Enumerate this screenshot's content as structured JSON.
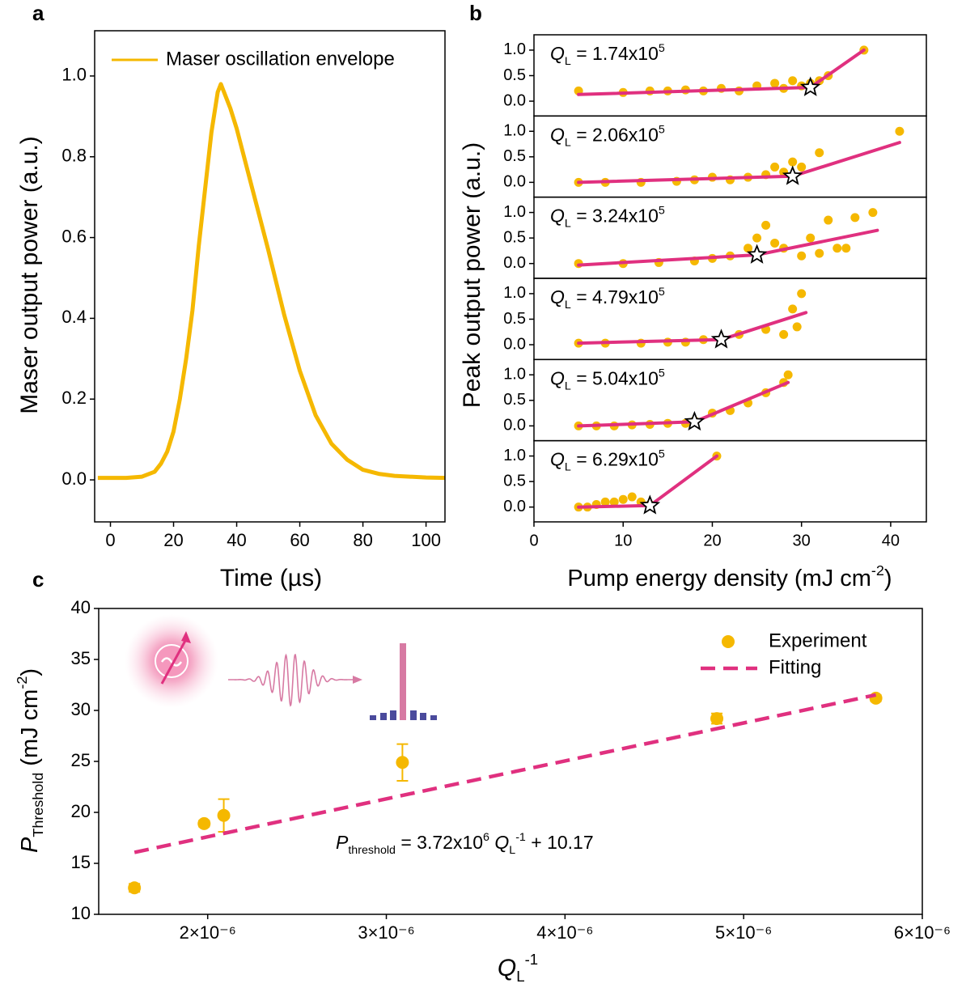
{
  "chart_data": [
    {
      "type": "line",
      "panel_label": "a",
      "xlabel": "Time (µs)",
      "ylabel": "Maser output power (a.u.)",
      "xlim": [
        -5,
        106
      ],
      "ylim": [
        -0.1,
        1.1
      ],
      "xticks": [
        0,
        20,
        40,
        60,
        80,
        100
      ],
      "yticks": [
        {
          "value": 0,
          "label": "0.0"
        },
        0.2,
        0.4,
        0.6,
        0.8,
        {
          "value": 1,
          "label": "1.0"
        }
      ],
      "x": [
        -4,
        0,
        5,
        10,
        14,
        16,
        18,
        20,
        22,
        24,
        26,
        28,
        30,
        32,
        34,
        35,
        36,
        38,
        40,
        42,
        45,
        48,
        50,
        55,
        60,
        65,
        70,
        75,
        80,
        85,
        90,
        100,
        106
      ],
      "series": [
        {
          "name": "Maser oscillation envelope",
          "color": "#f5b800",
          "values": [
            0.005,
            0.005,
            0.005,
            0.008,
            0.02,
            0.04,
            0.07,
            0.12,
            0.2,
            0.3,
            0.42,
            0.58,
            0.72,
            0.86,
            0.96,
            0.98,
            0.96,
            0.92,
            0.87,
            0.81,
            0.72,
            0.63,
            0.57,
            0.41,
            0.27,
            0.16,
            0.09,
            0.05,
            0.025,
            0.015,
            0.01,
            0.006,
            0.005
          ]
        }
      ],
      "legend": "upper left"
    },
    {
      "type": "scatter",
      "panel_label": "b",
      "xlabel": [
        "Pump energy density (mJ cm",
        "-2",
        ")"
      ],
      "ylabel": "Peak output power (a.u.)",
      "xlim": [
        0,
        44
      ],
      "xticks": [
        0,
        10,
        20,
        30,
        40
      ],
      "ylim": [
        -0.29,
        1.3
      ],
      "yticks": [
        {
          "value": 0,
          "label": "0.0"
        },
        0.5,
        {
          "value": 1,
          "label": "1.0"
        }
      ],
      "color": "#f5b800",
      "fit_color": "#e0307f",
      "subplots": [
        {
          "label": [
            "Q",
            "L",
            " = 1.74x10",
            "5"
          ],
          "x": [
            5,
            10,
            13,
            15,
            17,
            19,
            21,
            23,
            25,
            27,
            28,
            29,
            30,
            31,
            32,
            33,
            37
          ],
          "y": [
            0.2,
            0.17,
            0.2,
            0.2,
            0.22,
            0.2,
            0.25,
            0.2,
            0.3,
            0.35,
            0.25,
            0.4,
            0.3,
            0.35,
            0.4,
            0.5,
            1.0
          ],
          "fit": {
            "x": [
              5,
              31,
              37
            ],
            "y": [
              0.13,
              0.27,
              1.0
            ]
          },
          "threshold": {
            "x": 31,
            "y": 0.27
          }
        },
        {
          "label": [
            "Q",
            "L",
            " = 2.06x10",
            "5"
          ],
          "x": [
            5,
            8,
            12,
            16,
            18,
            20,
            22,
            24,
            26,
            27,
            28,
            29,
            30,
            32,
            41
          ],
          "y": [
            0,
            0,
            0,
            0.02,
            0.05,
            0.1,
            0.05,
            0.1,
            0.15,
            0.3,
            0.2,
            0.4,
            0.3,
            0.58,
            1.0
          ],
          "fit": {
            "x": [
              5,
              29,
              41
            ],
            "y": [
              0,
              0.12,
              0.78
            ]
          },
          "threshold": {
            "x": 29,
            "y": 0.12
          }
        },
        {
          "label": [
            "Q",
            "L",
            " = 3.24x10",
            "5"
          ],
          "x": [
            5,
            10,
            14,
            18,
            20,
            22,
            24,
            25,
            26,
            27,
            28,
            30,
            31,
            32,
            33,
            34,
            35,
            36,
            38
          ],
          "y": [
            0,
            0,
            0.02,
            0.05,
            0.1,
            0.15,
            0.3,
            0.5,
            0.75,
            0.4,
            0.3,
            0.15,
            0.5,
            0.2,
            0.85,
            0.3,
            0.3,
            0.9,
            1.0
          ],
          "fit": {
            "x": [
              5,
              25,
              38.5
            ],
            "y": [
              -0.03,
              0.17,
              0.65
            ]
          },
          "threshold": {
            "x": 25,
            "y": 0.17
          }
        },
        {
          "label": [
            "Q",
            "L",
            " = 4.79x10",
            "5"
          ],
          "x": [
            5,
            8,
            12,
            15,
            17,
            19,
            21,
            23,
            26,
            28,
            29,
            29.5,
            30
          ],
          "y": [
            0.03,
            0.03,
            0.03,
            0.05,
            0.05,
            0.1,
            0.1,
            0.2,
            0.3,
            0.2,
            0.7,
            0.35,
            1.0
          ],
          "fit": {
            "x": [
              5,
              21,
              30.5
            ],
            "y": [
              0.03,
              0.1,
              0.63
            ]
          },
          "threshold": {
            "x": 21,
            "y": 0.1
          }
        },
        {
          "label": [
            "Q",
            "L",
            " = 5.04x10",
            "5"
          ],
          "x": [
            5,
            7,
            9,
            11,
            13,
            15,
            17,
            18,
            20,
            22,
            24,
            26,
            28,
            28.5
          ],
          "y": [
            0,
            0,
            0,
            0.02,
            0.03,
            0.05,
            0.05,
            0.1,
            0.25,
            0.3,
            0.45,
            0.65,
            0.85,
            1.0
          ],
          "fit": {
            "x": [
              5,
              18,
              28.5
            ],
            "y": [
              0,
              0.08,
              0.85
            ]
          },
          "threshold": {
            "x": 18,
            "y": 0.08
          }
        },
        {
          "label": [
            "Q",
            "L",
            " = 6.29x10",
            "5"
          ],
          "x": [
            5,
            6,
            7,
            8,
            9,
            10,
            11,
            12,
            13,
            20.5
          ],
          "y": [
            0,
            0,
            0.05,
            0.1,
            0.1,
            0.15,
            0.2,
            0.1,
            0.05,
            1.0
          ],
          "fit": {
            "x": [
              5,
              13,
              20.5
            ],
            "y": [
              0,
              0.03,
              1.0
            ]
          },
          "threshold": {
            "x": 13,
            "y": 0.03
          }
        }
      ]
    },
    {
      "type": "errorbar",
      "panel_label": "c",
      "xlabel": [
        "Q",
        "L",
        "-1"
      ],
      "ylabel": [
        "P",
        "Threshold",
        " (mJ cm",
        "-2",
        ")"
      ],
      "xlim": [
        1.39e-06,
        6e-06
      ],
      "ylim": [
        10,
        40
      ],
      "xticks": [
        {
          "value": 2e-06,
          "label": "2×10⁻⁶"
        },
        {
          "value": 3e-06,
          "label": "3×10⁻⁶"
        },
        {
          "value": 4e-06,
          "label": "4×10⁻⁶"
        },
        {
          "value": 5e-06,
          "label": "5×10⁻⁶"
        },
        {
          "value": 6e-06,
          "label": "6×10⁻⁶"
        }
      ],
      "yticks": [
        10,
        15,
        20,
        25,
        30,
        35,
        40
      ],
      "series": [
        {
          "name": "Experiment",
          "color": "#f5b800",
          "x": [
            1.59e-06,
            1.98e-06,
            2.09e-06,
            3.09e-06,
            4.85e-06,
            5.74e-06
          ],
          "values": [
            12.6,
            18.9,
            19.7,
            24.9,
            29.2,
            31.2
          ],
          "errors": [
            0.4,
            0.3,
            1.6,
            1.8,
            0.5,
            0.3
          ]
        },
        {
          "name": "Fitting",
          "color": "#e0307f",
          "dashed": true,
          "x": [
            1.59e-06,
            5.74e-06
          ],
          "values": [
            16.08,
            31.52
          ]
        }
      ],
      "annotation": [
        "P",
        "threshold",
        " = 3.72x10",
        "6",
        " Q",
        "L",
        "-1",
        " + 10.17"
      ],
      "legend": "upper right"
    }
  ]
}
